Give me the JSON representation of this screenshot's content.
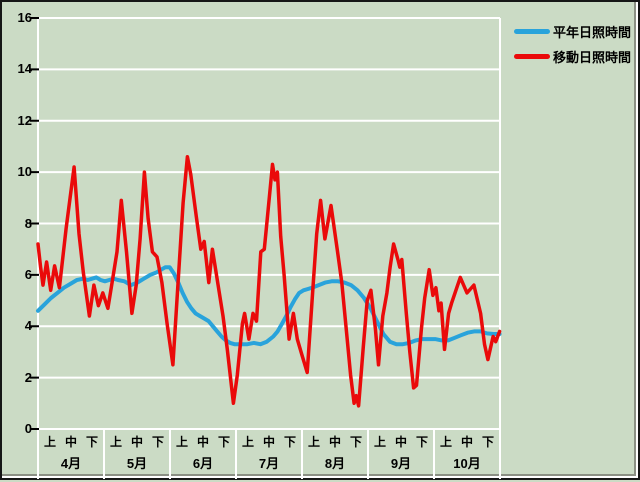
{
  "chart_data": {
    "type": "line",
    "title": "",
    "xlabel": "",
    "ylabel": "",
    "ylim": [
      0,
      16
    ],
    "yticks": [
      0,
      2,
      4,
      6,
      8,
      10,
      12,
      14,
      16
    ],
    "x_range": [
      0,
      214
    ],
    "x_unit": "day-of-season (0 = start of 4月, 214 = end of 10月)",
    "grid": true,
    "gridline_color": "#ffffff",
    "background": "#cbdbc5",
    "legend_position": "top-right",
    "period_labels": [
      "上",
      "中",
      "下"
    ],
    "months": [
      {
        "label": "4月"
      },
      {
        "label": "5月"
      },
      {
        "label": "6月"
      },
      {
        "label": "7月"
      },
      {
        "label": "8月"
      },
      {
        "label": "9月"
      },
      {
        "label": "10月"
      }
    ],
    "series": [
      {
        "name": "平年日照時間",
        "color": "#29a3db",
        "stroke_width": 4,
        "points": [
          [
            0,
            4.6
          ],
          [
            3,
            4.85
          ],
          [
            6,
            5.1
          ],
          [
            9,
            5.3
          ],
          [
            12,
            5.5
          ],
          [
            15,
            5.65
          ],
          [
            18,
            5.8
          ],
          [
            21,
            5.85
          ],
          [
            23,
            5.8
          ],
          [
            25,
            5.85
          ],
          [
            27,
            5.9
          ],
          [
            29,
            5.8
          ],
          [
            31,
            5.75
          ],
          [
            33,
            5.8
          ],
          [
            35,
            5.85
          ],
          [
            37,
            5.8
          ],
          [
            40,
            5.75
          ],
          [
            43,
            5.6
          ],
          [
            46,
            5.7
          ],
          [
            49,
            5.85
          ],
          [
            52,
            6.0
          ],
          [
            55,
            6.1
          ],
          [
            57,
            6.2
          ],
          [
            59,
            6.3
          ],
          [
            61,
            6.3
          ],
          [
            63,
            6.05
          ],
          [
            65,
            5.7
          ],
          [
            67,
            5.3
          ],
          [
            69,
            4.95
          ],
          [
            71,
            4.7
          ],
          [
            73,
            4.5
          ],
          [
            75,
            4.4
          ],
          [
            77,
            4.3
          ],
          [
            79,
            4.2
          ],
          [
            81,
            4.0
          ],
          [
            83,
            3.8
          ],
          [
            85,
            3.6
          ],
          [
            87,
            3.45
          ],
          [
            89,
            3.35
          ],
          [
            91,
            3.3
          ],
          [
            94,
            3.3
          ],
          [
            97,
            3.3
          ],
          [
            100,
            3.35
          ],
          [
            103,
            3.3
          ],
          [
            106,
            3.4
          ],
          [
            109,
            3.6
          ],
          [
            111,
            3.8
          ],
          [
            113,
            4.1
          ],
          [
            115,
            4.4
          ],
          [
            117,
            4.75
          ],
          [
            119,
            5.05
          ],
          [
            121,
            5.3
          ],
          [
            123,
            5.4
          ],
          [
            125,
            5.45
          ],
          [
            127,
            5.5
          ],
          [
            130,
            5.6
          ],
          [
            133,
            5.7
          ],
          [
            136,
            5.75
          ],
          [
            139,
            5.75
          ],
          [
            142,
            5.7
          ],
          [
            145,
            5.6
          ],
          [
            148,
            5.4
          ],
          [
            151,
            5.1
          ],
          [
            154,
            4.7
          ],
          [
            157,
            4.2
          ],
          [
            160,
            3.7
          ],
          [
            163,
            3.4
          ],
          [
            166,
            3.3
          ],
          [
            169,
            3.3
          ],
          [
            172,
            3.35
          ],
          [
            175,
            3.45
          ],
          [
            178,
            3.5
          ],
          [
            181,
            3.5
          ],
          [
            184,
            3.5
          ],
          [
            187,
            3.45
          ],
          [
            190,
            3.45
          ],
          [
            193,
            3.55
          ],
          [
            196,
            3.65
          ],
          [
            199,
            3.75
          ],
          [
            202,
            3.8
          ],
          [
            205,
            3.8
          ],
          [
            208,
            3.72
          ],
          [
            211,
            3.7
          ],
          [
            213.8,
            3.7
          ]
        ]
      },
      {
        "name": "移動日照時間",
        "color": "#ea0a0a",
        "stroke_width": 3.5,
        "points": [
          [
            0,
            7.2
          ],
          [
            1.2,
            6.3
          ],
          [
            2.3,
            5.6
          ],
          [
            4,
            6.5
          ],
          [
            5.9,
            5.4
          ],
          [
            7.7,
            6.35
          ],
          [
            9.9,
            5.5
          ],
          [
            13,
            7.8
          ],
          [
            16.7,
            10.2
          ],
          [
            19,
            7.6
          ],
          [
            21,
            6.1
          ],
          [
            23.8,
            4.4
          ],
          [
            25.9,
            5.6
          ],
          [
            28,
            4.8
          ],
          [
            30,
            5.3
          ],
          [
            32.4,
            4.7
          ],
          [
            34.5,
            5.8
          ],
          [
            36.6,
            6.9
          ],
          [
            38.6,
            8.9
          ],
          [
            41,
            6.9
          ],
          [
            43.5,
            4.5
          ],
          [
            45.5,
            5.6
          ],
          [
            47.3,
            7.4
          ],
          [
            49.3,
            10.0
          ],
          [
            51,
            8.2
          ],
          [
            53,
            6.9
          ],
          [
            55.1,
            6.7
          ],
          [
            57.4,
            5.7
          ],
          [
            59.8,
            4.1
          ],
          [
            62.5,
            2.5
          ],
          [
            64.8,
            5.6
          ],
          [
            67.2,
            8.8
          ],
          [
            69.2,
            10.6
          ],
          [
            70.8,
            9.9
          ],
          [
            73.3,
            8.3
          ],
          [
            75.4,
            7.0
          ],
          [
            77,
            7.3
          ],
          [
            79.1,
            5.7
          ],
          [
            80.8,
            7.0
          ],
          [
            83.4,
            5.6
          ],
          [
            85.7,
            4.4
          ],
          [
            87.7,
            3.1
          ],
          [
            90.5,
            1.0
          ],
          [
            92.3,
            2.1
          ],
          [
            94.7,
            4.1
          ],
          [
            95.7,
            4.5
          ],
          [
            97.7,
            3.5
          ],
          [
            99.6,
            4.5
          ],
          [
            101.2,
            4.2
          ],
          [
            103.2,
            6.9
          ],
          [
            104.8,
            7.0
          ],
          [
            106.2,
            8.2
          ],
          [
            108.6,
            10.3
          ],
          [
            109.8,
            9.7
          ],
          [
            110.9,
            10.0
          ],
          [
            112.4,
            7.5
          ],
          [
            114,
            6.0
          ],
          [
            116.3,
            3.5
          ],
          [
            118.3,
            4.5
          ],
          [
            120.1,
            3.5
          ],
          [
            122.2,
            2.9
          ],
          [
            124.7,
            2.2
          ],
          [
            127.5,
            5.7
          ],
          [
            129.1,
            7.6
          ],
          [
            130.9,
            8.9
          ],
          [
            132.9,
            7.4
          ],
          [
            135.7,
            8.7
          ],
          [
            138.6,
            7.0
          ],
          [
            140.7,
            5.7
          ],
          [
            143,
            3.7
          ],
          [
            144.8,
            2.1
          ],
          [
            146.4,
            1.0
          ],
          [
            147.4,
            1.3
          ],
          [
            148.5,
            0.9
          ],
          [
            150.7,
            3.2
          ],
          [
            152.5,
            5.0
          ],
          [
            154.2,
            5.4
          ],
          [
            156.3,
            3.9
          ],
          [
            157.7,
            2.5
          ],
          [
            159.7,
            4.4
          ],
          [
            161.6,
            5.3
          ],
          [
            163.1,
            6.3
          ],
          [
            164.7,
            7.2
          ],
          [
            166.7,
            6.6
          ],
          [
            167.6,
            6.3
          ],
          [
            168.5,
            6.6
          ],
          [
            170.6,
            4.5
          ],
          [
            172.2,
            3.0
          ],
          [
            174,
            1.6
          ],
          [
            175.3,
            1.7
          ],
          [
            177.6,
            3.9
          ],
          [
            179.1,
            5.1
          ],
          [
            181.2,
            6.2
          ],
          [
            182.9,
            5.2
          ],
          [
            184.3,
            5.5
          ],
          [
            185.7,
            4.6
          ],
          [
            186.7,
            4.9
          ],
          [
            188.3,
            3.1
          ],
          [
            190.2,
            4.5
          ],
          [
            191.6,
            4.9
          ],
          [
            194,
            5.5
          ],
          [
            195.6,
            5.9
          ],
          [
            198.7,
            5.3
          ],
          [
            201.9,
            5.6
          ],
          [
            205,
            4.5
          ],
          [
            206.8,
            3.3
          ],
          [
            208.4,
            2.7
          ],
          [
            210.8,
            3.6
          ],
          [
            212,
            3.4
          ],
          [
            213.8,
            3.8
          ]
        ]
      }
    ]
  },
  "legend": {
    "items": [
      {
        "label": "平年日照時間",
        "color": "#29a3db"
      },
      {
        "label": "移動日照時間",
        "color": "#ea0a0a"
      }
    ]
  }
}
